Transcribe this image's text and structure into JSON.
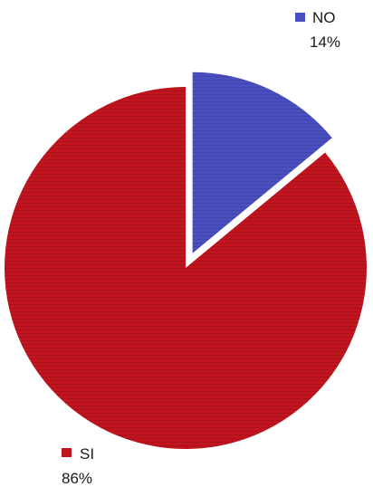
{
  "chart_data": {
    "type": "pie",
    "slices": [
      {
        "label": "NO",
        "value": 14,
        "value_label": "14%",
        "color": "#4a4fc0",
        "exploded": true,
        "legend_position": "top-right"
      },
      {
        "label": "SI",
        "value": 86,
        "value_label": "86%",
        "color": "#c0141e",
        "exploded": false,
        "legend_position": "bottom-left"
      }
    ],
    "start_angle_deg": 0,
    "direction": "clockwise"
  }
}
